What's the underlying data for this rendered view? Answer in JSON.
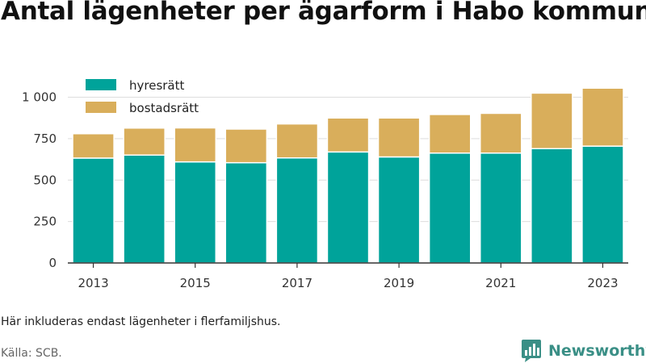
{
  "title": "Antal lägenheter per ägarform i Habo kommun",
  "note": "Här inkluderas endast lägenheter i flerfamiljshus.",
  "source": "Källa: SCB.",
  "brand": {
    "name": "Newsworthy",
    "icon": "bar-chart-speech-bubble-logo"
  },
  "colors": {
    "hyresratt": "#00a39a",
    "bostadsratt": "#d9ae5b",
    "brand": "#3a8f86",
    "axis": "#333333",
    "grid": "#dddddd"
  },
  "chart_data": {
    "type": "bar",
    "stacked": true,
    "categories": [
      "2013",
      "2014",
      "2015",
      "2016",
      "2017",
      "2018",
      "2019",
      "2020",
      "2021",
      "2022",
      "2023"
    ],
    "series": [
      {
        "name": "hyresrätt",
        "values": [
          633,
          651,
          610,
          605,
          634,
          670,
          640,
          663,
          663,
          690,
          705
        ]
      },
      {
        "name": "bostadsrätt",
        "values": [
          147,
          163,
          205,
          203,
          205,
          205,
          235,
          233,
          240,
          335,
          350
        ]
      }
    ],
    "x_tick_labels": [
      "2013",
      "2015",
      "2017",
      "2019",
      "2021",
      "2023"
    ],
    "y_ticks": [
      0,
      250,
      500,
      750,
      1000
    ],
    "y_tick_labels": [
      "0",
      "250",
      "500",
      "750",
      "1 000"
    ],
    "ylim": [
      0,
      1100
    ],
    "grid": true,
    "legend": "top-left",
    "xlabel": "",
    "ylabel": ""
  }
}
